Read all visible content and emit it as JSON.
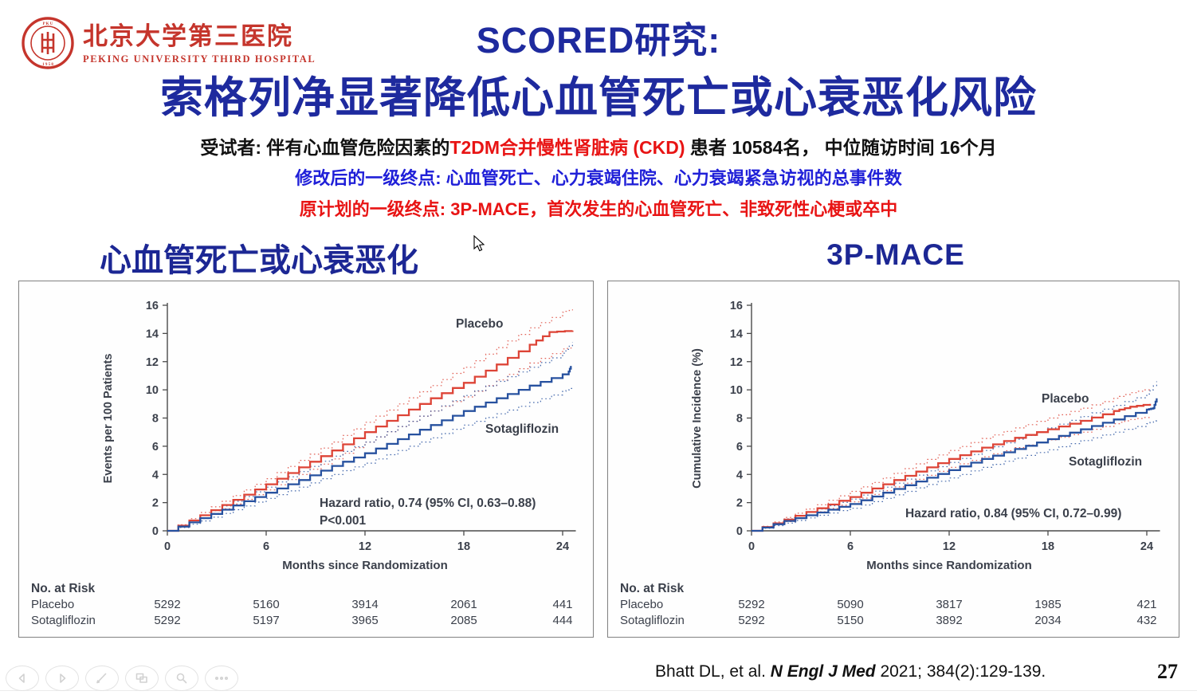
{
  "header": {
    "hospital_cn": "北京大学第三医院",
    "hospital_en": "PEKING UNIVERSITY THIRD HOSPITAL",
    "title_line1": "SCORED研究:",
    "title_line2": "索格列净显著降低心血管死亡或心衰恶化风险"
  },
  "subtitle": {
    "line1_black1": "受试者: 伴有心血管危险因素的",
    "line1_red": "T2DM合并慢性肾脏病 (CKD)",
    "line1_black2": " 患者 10584名， 中位随访时间 16个月",
    "line2_blue": "修改后的一级终点: 心血管死亡、心力衰竭住院、心力衰竭紧急访视的总事件数",
    "line3_red": "原计划的一级终点: 3P-MACE，首次发生的心血管死亡、非致死性心梗或卒中"
  },
  "sections": {
    "left_title": "心血管死亡或心衰恶化",
    "right_title": "3P-MACE"
  },
  "footer": {
    "citation_prefix": "Bhatt DL, et al. ",
    "citation_journal": "N Engl J Med",
    "citation_suffix": " 2021; 384(2):129-139.",
    "page_number": "27"
  },
  "colors": {
    "placebo": "#dd4437",
    "sotagliflozin": "#27519f",
    "chart_text": "#3b404b",
    "axis": "#4a4a4a",
    "title_navy": "#1e2a9e"
  },
  "chart_data": [
    {
      "type": "line",
      "title": "心血管死亡或心衰恶化",
      "ylabel": "Events per 100 Patients",
      "xlabel": "Months since Randomization",
      "ylim": [
        0,
        16
      ],
      "xlim": [
        0,
        24.8
      ],
      "yticks": [
        0,
        2,
        4,
        6,
        8,
        10,
        12,
        14,
        16
      ],
      "xticks": [
        0,
        6,
        12,
        18,
        24
      ],
      "grid": false,
      "legend_position": "inline-labels",
      "annotation": [
        "Hazard ratio, 0.74 (95% CI, 0.63–0.88)",
        "P<0.001"
      ],
      "series": [
        {
          "name": "Placebo",
          "style": "solid",
          "color": "#dd4437",
          "x": [
            0,
            2,
            4,
            6,
            8,
            10,
            12,
            14,
            16,
            18,
            20,
            22,
            23.2,
            24.6
          ],
          "values": [
            0,
            1.1,
            2.2,
            3.3,
            4.5,
            5.7,
            7.0,
            8.2,
            9.4,
            10.5,
            11.8,
            13.2,
            14.1,
            14.2
          ]
        },
        {
          "name": "Sotagliflozin",
          "style": "solid",
          "color": "#27519f",
          "x": [
            0,
            2,
            4,
            6,
            8,
            10,
            12,
            14,
            16,
            18,
            20,
            22,
            24,
            24.3,
            24.5
          ],
          "values": [
            0,
            0.9,
            1.8,
            2.7,
            3.6,
            4.6,
            5.5,
            6.5,
            7.5,
            8.5,
            9.4,
            10.3,
            11.1,
            11.1,
            11.7
          ]
        },
        {
          "name": "Placebo 95% CI upper",
          "style": "dotted",
          "color": "#dd4437",
          "x": [
            0,
            2,
            4,
            6,
            8,
            10,
            12,
            14,
            16,
            18,
            20,
            22,
            24,
            24.6
          ],
          "values": [
            0,
            1.3,
            2.5,
            3.7,
            5.0,
            6.3,
            7.7,
            9.0,
            10.3,
            11.6,
            13.0,
            14.4,
            15.5,
            15.7
          ]
        },
        {
          "name": "Placebo 95% CI lower",
          "style": "dotted",
          "color": "#dd4437",
          "x": [
            0,
            2,
            4,
            6,
            8,
            10,
            12,
            14,
            16,
            18,
            20,
            22,
            24,
            24.6
          ],
          "values": [
            0,
            0.9,
            1.9,
            2.9,
            4.0,
            5.1,
            6.3,
            7.4,
            8.5,
            9.5,
            10.7,
            11.9,
            12.9,
            13.0
          ]
        },
        {
          "name": "Sotagliflozin 95% CI upper",
          "style": "dotted",
          "color": "#27519f",
          "x": [
            0,
            2,
            4,
            6,
            8,
            10,
            12,
            14,
            16,
            18,
            20,
            22,
            24,
            24.6
          ],
          "values": [
            0,
            1.1,
            2.1,
            3.1,
            4.2,
            5.3,
            6.3,
            7.4,
            8.5,
            9.6,
            10.6,
            11.6,
            12.6,
            13.4
          ]
        },
        {
          "name": "Sotagliflozin 95% CI lower",
          "style": "dotted",
          "color": "#27519f",
          "x": [
            0,
            2,
            4,
            6,
            8,
            10,
            12,
            14,
            16,
            18,
            20,
            22,
            24,
            24.6
          ],
          "values": [
            0,
            0.7,
            1.5,
            2.3,
            3.1,
            4.0,
            4.8,
            5.7,
            6.6,
            7.5,
            8.3,
            9.1,
            9.9,
            10.2
          ]
        }
      ],
      "at_risk": {
        "header": "No. at Risk",
        "rows": [
          {
            "label": "Placebo",
            "counts": [
              "5292",
              "5160",
              "3914",
              "2061",
              "441"
            ]
          },
          {
            "label": "Sotagliflozin",
            "counts": [
              "5292",
              "5197",
              "3965",
              "2085",
              "444"
            ]
          }
        ]
      }
    },
    {
      "type": "line",
      "title": "3P-MACE",
      "ylabel": "Cumulative Incidence (%)",
      "xlabel": "Months since Randomization",
      "ylim": [
        0,
        16
      ],
      "xlim": [
        0,
        24.8
      ],
      "yticks": [
        0,
        2,
        4,
        6,
        8,
        10,
        12,
        14,
        16
      ],
      "xticks": [
        0,
        6,
        12,
        18,
        24
      ],
      "grid": false,
      "legend_position": "inline-labels",
      "annotation": [
        "Hazard ratio, 0.84 (95% CI, 0.72–0.99)"
      ],
      "series": [
        {
          "name": "Placebo",
          "style": "solid",
          "color": "#dd4437",
          "x": [
            0,
            2,
            4,
            6,
            8,
            10,
            12,
            14,
            16,
            18,
            20,
            22,
            23,
            24.2
          ],
          "values": [
            0,
            0.8,
            1.6,
            2.4,
            3.3,
            4.2,
            5.1,
            5.9,
            6.6,
            7.2,
            7.8,
            8.5,
            8.8,
            9.0
          ]
        },
        {
          "name": "Sotagliflozin",
          "style": "solid",
          "color": "#27519f",
          "x": [
            0,
            2,
            4,
            6,
            8,
            10,
            12,
            14,
            16,
            18,
            20,
            22,
            24,
            24.4,
            24.6
          ],
          "values": [
            0,
            0.7,
            1.3,
            1.9,
            2.7,
            3.5,
            4.3,
            5.1,
            5.8,
            6.5,
            7.2,
            7.9,
            8.6,
            8.7,
            9.4
          ]
        },
        {
          "name": "Placebo 95% CI upper",
          "style": "dotted",
          "color": "#dd4437",
          "x": [
            0,
            2,
            4,
            6,
            8,
            10,
            12,
            14,
            16,
            18,
            20,
            22,
            23,
            24.2
          ],
          "values": [
            0,
            0.95,
            1.85,
            2.8,
            3.75,
            4.75,
            5.7,
            6.55,
            7.3,
            8.0,
            8.7,
            9.4,
            9.8,
            10.1
          ]
        },
        {
          "name": "Placebo 95% CI lower",
          "style": "dotted",
          "color": "#dd4437",
          "x": [
            0,
            2,
            4,
            6,
            8,
            10,
            12,
            14,
            16,
            18,
            20,
            22,
            23,
            24.2
          ],
          "values": [
            0,
            0.65,
            1.35,
            2.05,
            2.85,
            3.65,
            4.5,
            5.25,
            5.9,
            6.45,
            7.0,
            7.6,
            7.9,
            8.1
          ]
        },
        {
          "name": "Sotagliflozin 95% CI upper",
          "style": "dotted",
          "color": "#27519f",
          "x": [
            0,
            2,
            4,
            6,
            8,
            10,
            12,
            14,
            16,
            18,
            20,
            22,
            24,
            24.6
          ],
          "values": [
            0,
            0.85,
            1.55,
            2.25,
            3.1,
            3.95,
            4.85,
            5.7,
            6.5,
            7.3,
            8.1,
            8.9,
            9.7,
            10.6
          ]
        },
        {
          "name": "Sotagliflozin 95% CI lower",
          "style": "dotted",
          "color": "#27519f",
          "x": [
            0,
            2,
            4,
            6,
            8,
            10,
            12,
            14,
            16,
            18,
            20,
            22,
            24,
            24.6
          ],
          "values": [
            0,
            0.55,
            1.1,
            1.6,
            2.3,
            3.05,
            3.75,
            4.5,
            5.15,
            5.75,
            6.4,
            7.0,
            7.6,
            7.9
          ]
        }
      ],
      "at_risk": {
        "header": "No. at Risk",
        "rows": [
          {
            "label": "Placebo",
            "counts": [
              "5292",
              "5090",
              "3817",
              "1985",
              "421"
            ]
          },
          {
            "label": "Sotagliflozin",
            "counts": [
              "5292",
              "5150",
              "3892",
              "2034",
              "432"
            ]
          }
        ]
      }
    }
  ],
  "nav": {
    "items": [
      "previous-slide",
      "next-slide",
      "pen-tool",
      "slides-panel",
      "zoom-tool",
      "more-options"
    ]
  }
}
